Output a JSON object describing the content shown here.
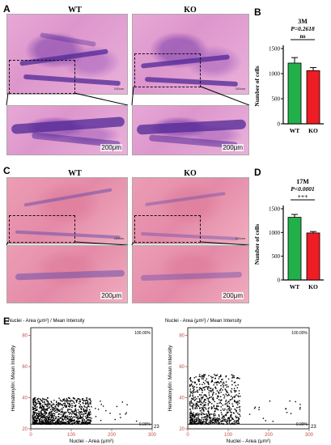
{
  "panels": {
    "A": {
      "letter": "A",
      "left_title": "WT",
      "right_title": "KO",
      "scale_small": "100um",
      "scale": "200μm"
    },
    "B": {
      "letter": "B",
      "group_label": "3M",
      "p_label": "P=0.2618",
      "sig": "ns",
      "ylabel": "Number of cells",
      "yticks": [
        "0",
        "500",
        "1000",
        "1500"
      ]
    },
    "C": {
      "letter": "C",
      "left_title": "WT",
      "right_title": "KO",
      "scale_small": "100um",
      "scale": "200μm"
    },
    "D": {
      "letter": "D",
      "group_label": "17M",
      "p_label": "P<0.0001",
      "sig": "+++",
      "ylabel": "Number of cells",
      "yticks": [
        "0",
        "500",
        "1000",
        "1500"
      ]
    },
    "E": {
      "letter": "E",
      "title": "Nuclei - Area (μm²) / Mean Intensity",
      "ylabel": "Hematoxylin: Mean Intensity",
      "xlabel": "Nuclei - Area (μm²)",
      "yticks": [
        "20",
        "40",
        "60",
        "80"
      ],
      "xticks": [
        "0",
        "100",
        "200",
        "300"
      ],
      "threshold": "23",
      "pct_top": "100.00%",
      "pct_bottom": "0.00%"
    }
  },
  "colors": {
    "wt": "#22b04a",
    "ko": "#ee1c24",
    "tick_red": "#c0504d"
  },
  "chart_data": [
    {
      "type": "bar",
      "title": "3M",
      "categories": [
        "WT",
        "KO"
      ],
      "values": [
        1210,
        1060
      ],
      "errors": [
        110,
        60
      ],
      "ylabel": "Number of cells",
      "ylim": [
        0,
        1500
      ],
      "annotation": "P=0.2618 ns"
    },
    {
      "type": "bar",
      "title": "17M",
      "categories": [
        "WT",
        "KO"
      ],
      "values": [
        1320,
        990
      ],
      "errors": [
        60,
        30
      ],
      "ylabel": "Number of cells",
      "ylim": [
        0,
        1500
      ],
      "annotation": "P<0.0001 +++"
    },
    {
      "type": "scatter",
      "title": "Nuclei - Area (μm²) / Mean Intensity",
      "xlabel": "Nuclei - Area (μm²)",
      "ylabel": "Hematoxylin: Mean Intensity",
      "xlim": [
        0,
        300
      ],
      "ylim": [
        20,
        85
      ],
      "threshold_y": 23,
      "cluster": {
        "x_range": [
          5,
          150
        ],
        "y_range": [
          23,
          40
        ],
        "n": 1000
      }
    },
    {
      "type": "scatter",
      "title": "Nuclei - Area (μm²) / Mean Intensity",
      "xlabel": "Nuclei - Area (μm²)",
      "ylabel": "Hematoxylin: Mean Intensity",
      "xlim": [
        0,
        300
      ],
      "ylim": [
        20,
        85
      ],
      "threshold_y": 23,
      "cluster": {
        "x_range": [
          5,
          130
        ],
        "y_range": [
          23,
          55
        ],
        "n": 800
      }
    }
  ]
}
